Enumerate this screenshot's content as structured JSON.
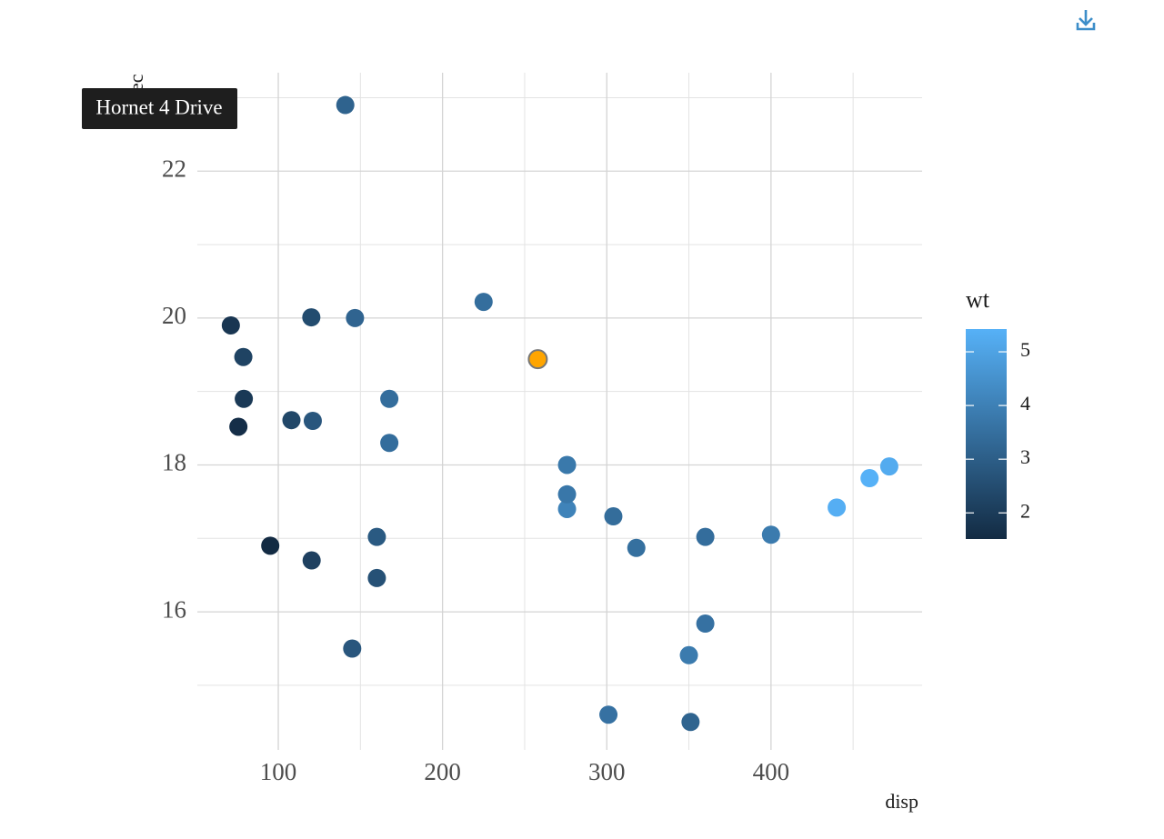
{
  "chart_data": {
    "type": "scatter",
    "x_label": "disp",
    "y_label": "qsec",
    "x": [
      160,
      160,
      108,
      258,
      360,
      225,
      360,
      146.7,
      140.8,
      167.6,
      167.6,
      275.8,
      275.8,
      275.8,
      472,
      460,
      440,
      78.7,
      75.7,
      71.1,
      120.1,
      318,
      304,
      350,
      400,
      79,
      120.3,
      95.1,
      351,
      145,
      301,
      121
    ],
    "values": [
      16.46,
      17.02,
      18.61,
      19.44,
      17.02,
      20.22,
      15.84,
      20.0,
      22.9,
      18.3,
      18.9,
      17.4,
      17.6,
      18.0,
      17.98,
      17.82,
      17.42,
      19.47,
      18.52,
      19.9,
      20.01,
      16.87,
      17.3,
      15.41,
      17.05,
      18.9,
      16.7,
      16.9,
      14.5,
      15.5,
      14.6,
      18.6
    ],
    "color_name": "wt",
    "color_values": [
      2.62,
      2.875,
      2.32,
      3.215,
      3.44,
      3.46,
      3.57,
      3.19,
      3.15,
      3.44,
      3.44,
      4.07,
      3.73,
      3.78,
      5.25,
      5.424,
      5.345,
      2.2,
      1.615,
      1.835,
      2.465,
      3.52,
      3.435,
      3.84,
      3.845,
      1.935,
      2.14,
      1.513,
      3.17,
      2.77,
      3.57,
      2.78
    ],
    "color_low": "#132B43",
    "color_high": "#56B1F7",
    "color_ticks": [
      2,
      3,
      4,
      5
    ],
    "highlight_index": 3,
    "highlight_color": "#FFA500",
    "tooltip": "Hornet 4 Drive",
    "xlim": [
      50.7,
      492
    ],
    "ylim": [
      14.12,
      23.34
    ],
    "xticks": [
      100,
      200,
      300,
      400
    ],
    "yticks": [
      16,
      18,
      20,
      22
    ],
    "xminorticks": [
      150,
      250,
      350,
      450
    ],
    "yminorticks": [
      15,
      17,
      19,
      21,
      23
    ],
    "grid": true
  }
}
